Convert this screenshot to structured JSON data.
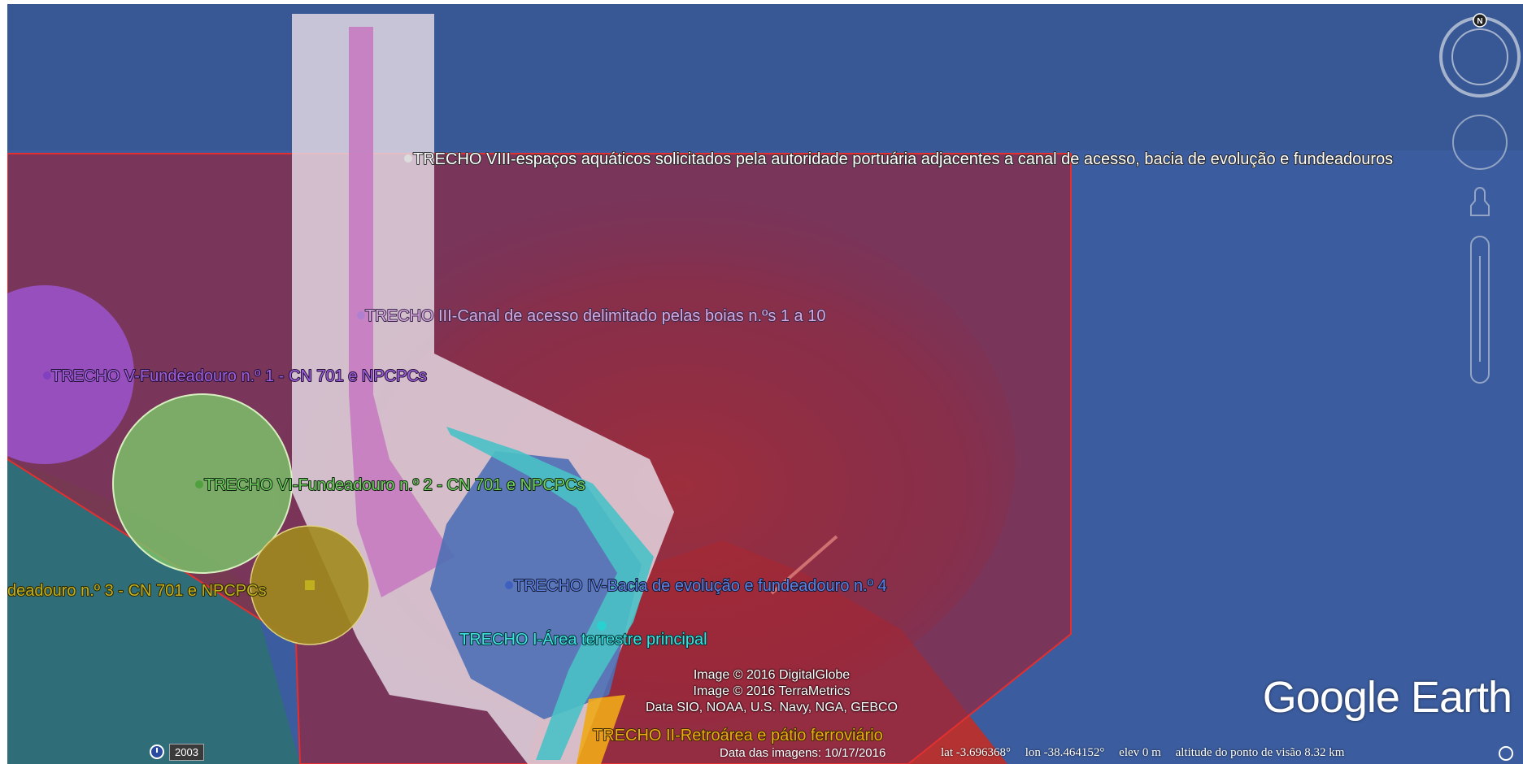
{
  "map": {
    "labels": {
      "trecho_viii": "TRECHO VIII-espaços aquáticos solicitados pela autoridade portuária adjacentes a canal de acesso, bacia de evolução e fundeadouros",
      "trecho_iii": "TRECHO III-Canal de acesso delimitado pelas boias n.ºs 1 a 10",
      "trecho_v": "TRECHO V-Fundeadouro n.º 1 - CN 701 e NPCPCs",
      "trecho_vi": "TRECHO VI-Fundeadouro n.º 2 - CN 701 e NPCPCs",
      "trecho_vii_partial": "deadouro n.º 3 - CN 701 e NPCPCs",
      "trecho_iv": "TRECHO IV-Bacia de evolução e fundeadouro n.º 4",
      "trecho_i": "TRECHO I-Área terrestre principal",
      "trecho_ii": "TRECHO II-Retroárea e pátio ferroviário"
    },
    "colors": {
      "ocean": "#3d5d9c",
      "trecho_viii": "#8a2a46",
      "trecho_iii": "#c677c0",
      "trecho_v": "#9a52c8",
      "trecho_vi": "#7bbf6a",
      "trecho_vii": "#a08a1e",
      "trecho_iv": "#4e6fb5",
      "trecho_i": "#49c1c7",
      "trecho_ii": "#f0a818"
    }
  },
  "credits": {
    "line1": "Image © 2016 DigitalGlobe",
    "line2": "Image © 2016 TerraMetrics",
    "line3": "Data SIO, NOAA, U.S. Navy, NGA, GEBCO"
  },
  "logo": "Google Earth",
  "statusbar": {
    "imagery_date": "Data das imagens: 10/17/2016",
    "lat": "lat  -3.696368°",
    "lon": "lon  -38.464152°",
    "elev": "elev     0 m",
    "eye_alt": "altitude do ponto de visão  8.32 km"
  },
  "timeline": {
    "year": "2003"
  },
  "navigation": {
    "north_label": "N"
  }
}
